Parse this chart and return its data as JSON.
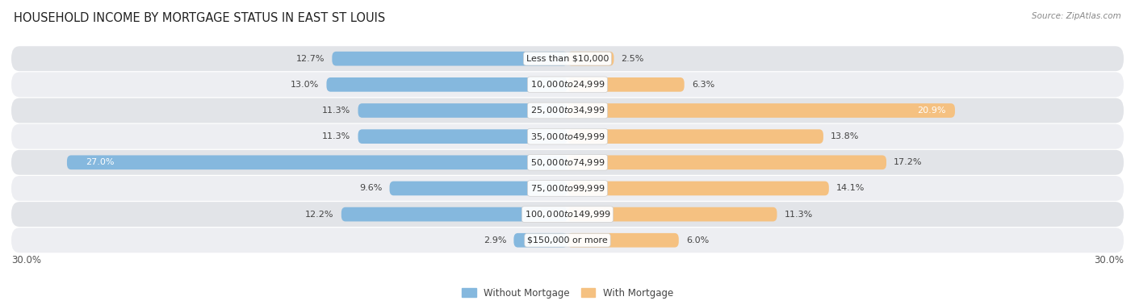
{
  "title": "HOUSEHOLD INCOME BY MORTGAGE STATUS IN EAST ST LOUIS",
  "source": "Source: ZipAtlas.com",
  "categories": [
    "Less than $10,000",
    "$10,000 to $24,999",
    "$25,000 to $34,999",
    "$35,000 to $49,999",
    "$50,000 to $74,999",
    "$75,000 to $99,999",
    "$100,000 to $149,999",
    "$150,000 or more"
  ],
  "without_mortgage": [
    12.7,
    13.0,
    11.3,
    11.3,
    27.0,
    9.6,
    12.2,
    2.9
  ],
  "with_mortgage": [
    2.5,
    6.3,
    20.9,
    13.8,
    17.2,
    14.1,
    11.3,
    6.0
  ],
  "color_without": "#85b8de",
  "color_with": "#f5c181",
  "bg_dark": "#e2e4e8",
  "bg_light": "#edeef2",
  "xlim": 30.0,
  "legend_labels": [
    "Without Mortgage",
    "With Mortgage"
  ],
  "title_fontsize": 10.5,
  "label_fontsize": 8.0,
  "tick_fontsize": 8.5,
  "source_fontsize": 7.5
}
